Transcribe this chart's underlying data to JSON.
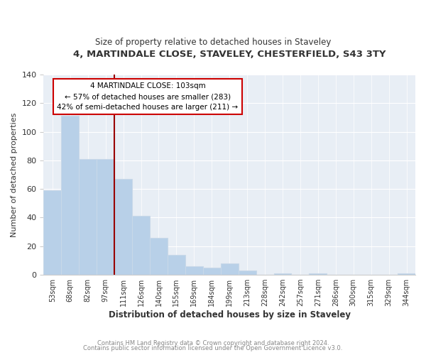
{
  "title1": "4, MARTINDALE CLOSE, STAVELEY, CHESTERFIELD, S43 3TY",
  "title2": "Size of property relative to detached houses in Staveley",
  "xlabel": "Distribution of detached houses by size in Staveley",
  "ylabel": "Number of detached properties",
  "bar_labels": [
    "53sqm",
    "68sqm",
    "82sqm",
    "97sqm",
    "111sqm",
    "126sqm",
    "140sqm",
    "155sqm",
    "169sqm",
    "184sqm",
    "199sqm",
    "213sqm",
    "228sqm",
    "242sqm",
    "257sqm",
    "271sqm",
    "286sqm",
    "300sqm",
    "315sqm",
    "329sqm",
    "344sqm"
  ],
  "bar_values": [
    59,
    111,
    81,
    81,
    67,
    41,
    26,
    14,
    6,
    5,
    8,
    3,
    0,
    1,
    0,
    1,
    0,
    0,
    0,
    0,
    1
  ],
  "bar_color": "#b8d0e8",
  "bar_edge_color": "#c8d8e8",
  "vline_x": 3.5,
  "vline_color": "#990000",
  "annotation_title": "4 MARTINDALE CLOSE: 103sqm",
  "annotation_line1": "← 57% of detached houses are smaller (283)",
  "annotation_line2": "42% of semi-detached houses are larger (211) →",
  "annotation_box_color": "#ffffff",
  "annotation_box_edge": "#cc0000",
  "footer1": "Contains HM Land Registry data © Crown copyright and database right 2024.",
  "footer2": "Contains public sector information licensed under the Open Government Licence v3.0.",
  "ylim": [
    0,
    140
  ],
  "fig_background": "#ffffff",
  "plot_background": "#e8eef5",
  "grid_color": "#ffffff",
  "footer_color": "#888888"
}
